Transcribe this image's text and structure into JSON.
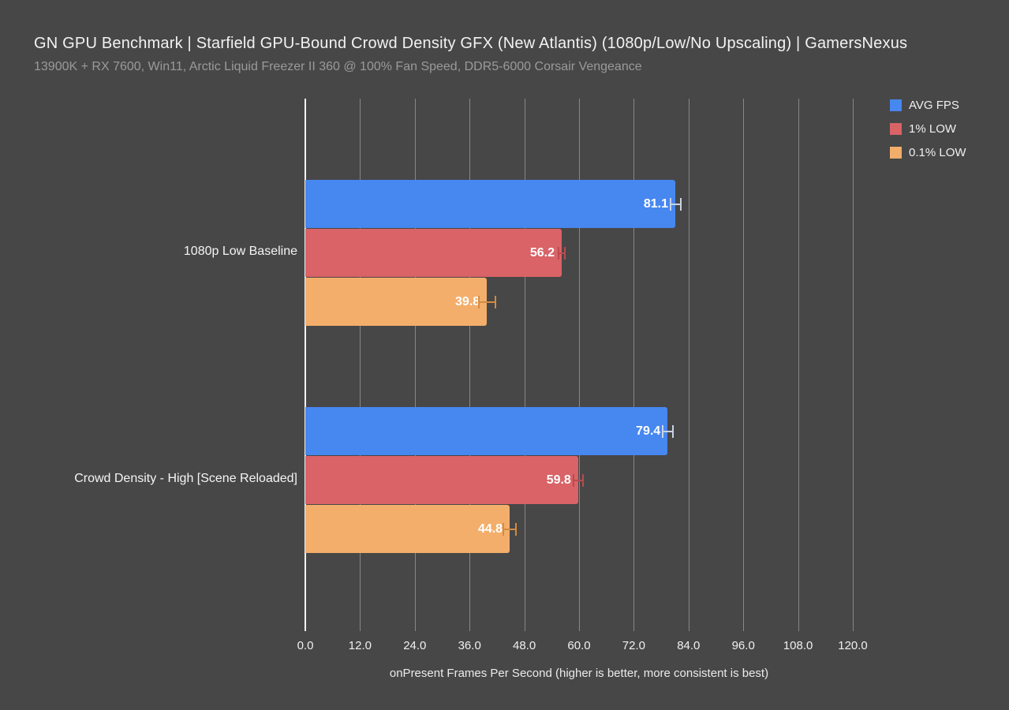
{
  "header": {
    "title": "GN GPU Benchmark | Starfield GPU-Bound Crowd Density GFX (New Atlantis) (1080p/Low/No Upscaling) | GamersNexus",
    "subtitle": "13900K + RX 7600, Win11, Arctic Liquid Freezer II 360 @ 100% Fan Speed, DDR5-6000 Corsair Vengeance"
  },
  "chart_data": {
    "type": "bar",
    "orientation": "horizontal",
    "title": "GN GPU Benchmark | Starfield GPU-Bound Crowd Density GFX (New Atlantis) (1080p/Low/No Upscaling) | GamersNexus",
    "subtitle": "13900K + RX 7600, Win11, Arctic Liquid Freezer II 360 @ 100% Fan Speed, DDR5-6000 Corsair Vengeance",
    "categories": [
      "1080p Low Baseline",
      "Crowd Density - High [Scene Reloaded]"
    ],
    "series": [
      {
        "name": "AVG FPS",
        "color": "#4787f0",
        "error_color": "#c9d2e4",
        "values": [
          81.1,
          79.4
        ],
        "errors": [
          1.3,
          1.3
        ]
      },
      {
        "name": "1% LOW",
        "color": "#d96367",
        "error_color": "#bb4a50",
        "values": [
          56.2,
          59.8
        ],
        "errors": [
          0.9,
          1.2
        ]
      },
      {
        "name": "0.1% LOW",
        "color": "#f3ae6b",
        "error_color": "#d28c43",
        "values": [
          39.8,
          44.8
        ],
        "errors": [
          2.0,
          1.5
        ]
      }
    ],
    "xlabel": "onPresent Frames Per Second (higher is better, more consistent is best)",
    "ylabel": "",
    "x_ticks": [
      "0.0",
      "12.0",
      "24.0",
      "36.0",
      "48.0",
      "60.0",
      "72.0",
      "84.0",
      "96.0",
      "108.0",
      "120.0"
    ],
    "xlim": [
      0,
      120
    ],
    "grid": true,
    "legend_position": "top-right",
    "value_label_decimals": 1
  },
  "colors": {
    "background": "#474747",
    "grid": "#979797",
    "axis": "#f5f5f5",
    "title_text": "#f2f2f2",
    "subtitle_text": "#9a9a9a",
    "value_text": "#ffffff"
  }
}
